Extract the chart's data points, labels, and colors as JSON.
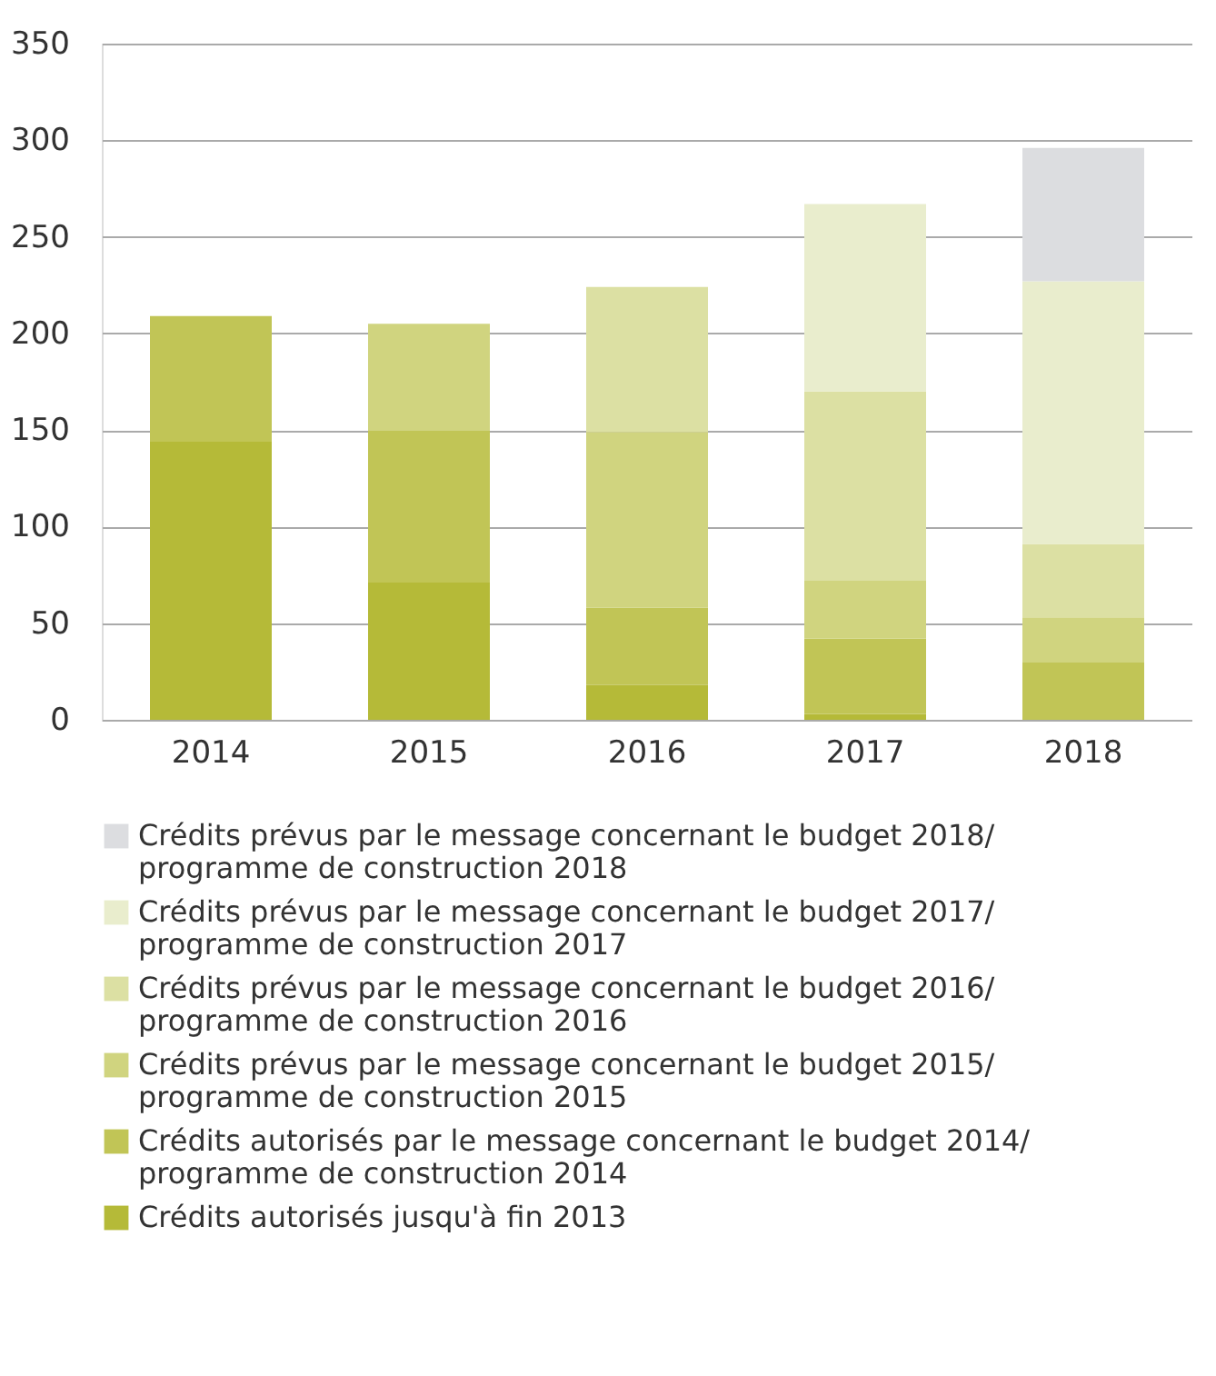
{
  "chart_data": {
    "type": "bar",
    "stacked": true,
    "categories": [
      "2014",
      "2015",
      "2016",
      "2017",
      "2018"
    ],
    "series": [
      {
        "name": "Crédits autorisés jusqu'à fin 2013",
        "color": "#b5ba38",
        "values": [
          144,
          71,
          18,
          3,
          null
        ]
      },
      {
        "name": "Crédits autorisés par le message concernant le budget 2014/ programme de construction 2014",
        "color": "#c1c556",
        "values": [
          65,
          79,
          40,
          39,
          30
        ]
      },
      {
        "name": "Crédits prévus par le message concernant le budget 2015/ programme de construction 2015",
        "color": "#d0d47f",
        "values": [
          null,
          55,
          91,
          30,
          23
        ]
      },
      {
        "name": "Crédits prévus par le message concernant le budget 2016/ programme de construction 2016",
        "color": "#dce0a3",
        "values": [
          null,
          null,
          75,
          98,
          38
        ]
      },
      {
        "name": "Crédits prévus par le message concernant le budget 2017/ programme de construction 2017",
        "color": "#e9edcd",
        "values": [
          null,
          null,
          null,
          97,
          136
        ]
      },
      {
        "name": "Crédits prévus par le message concernant le budget 2018/ programme de construction 2018",
        "color": "#dcdde0",
        "values": [
          null,
          null,
          null,
          null,
          69
        ]
      }
    ],
    "ylim": [
      0,
      350
    ],
    "yticks": [
      0,
      50,
      100,
      150,
      200,
      250,
      300,
      350
    ],
    "grid": "y",
    "legend": "bottom"
  }
}
